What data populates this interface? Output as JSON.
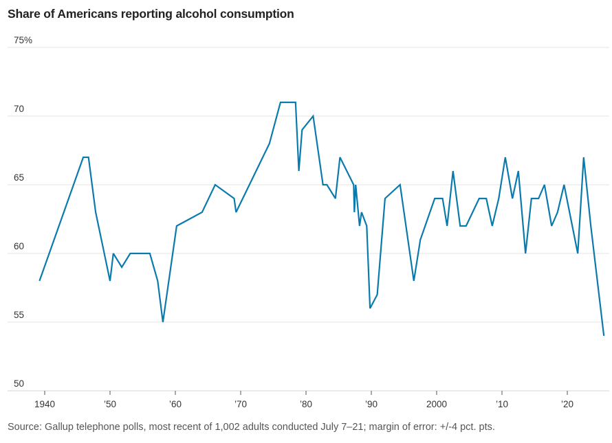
{
  "chart_data": {
    "type": "line",
    "title": "Share of Americans reporting alcohol consumption",
    "xlabel": "",
    "ylabel": "",
    "xlim": [
      1936.5,
      2027
    ],
    "ylim": [
      50,
      75
    ],
    "grid": true,
    "y_ticks": [
      {
        "value": 75,
        "label": "75%"
      },
      {
        "value": 70,
        "label": "70"
      },
      {
        "value": 65,
        "label": "65"
      },
      {
        "value": 60,
        "label": "60"
      },
      {
        "value": 55,
        "label": "55"
      },
      {
        "value": 50,
        "label": "50"
      }
    ],
    "x_ticks": [
      {
        "value": 1940,
        "label": "1940"
      },
      {
        "value": 1950,
        "label": "’50"
      },
      {
        "value": 1960,
        "label": "’60"
      },
      {
        "value": 1970,
        "label": "’70"
      },
      {
        "value": 1980,
        "label": "’80"
      },
      {
        "value": 1990,
        "label": "’90"
      },
      {
        "value": 2000,
        "label": "2000"
      },
      {
        "value": 2010,
        "label": "’10"
      },
      {
        "value": 2020,
        "label": "’20"
      }
    ],
    "series": [
      {
        "name": "Share reporting alcohol consumption",
        "color": "#0a7aad",
        "points": [
          [
            1939.2,
            58
          ],
          [
            1945.9,
            67
          ],
          [
            1946.7,
            67
          ],
          [
            1947.8,
            63
          ],
          [
            1950.0,
            58
          ],
          [
            1950.5,
            60
          ],
          [
            1951.8,
            59
          ],
          [
            1953.1,
            60
          ],
          [
            1956.1,
            60
          ],
          [
            1957.3,
            58
          ],
          [
            1958.1,
            55
          ],
          [
            1960.2,
            62
          ],
          [
            1964.1,
            63
          ],
          [
            1966.1,
            65
          ],
          [
            1969.0,
            64
          ],
          [
            1969.3,
            63
          ],
          [
            1974.4,
            68
          ],
          [
            1976.1,
            71
          ],
          [
            1978.4,
            71
          ],
          [
            1978.9,
            66
          ],
          [
            1979.4,
            69
          ],
          [
            1981.1,
            70
          ],
          [
            1982.6,
            65
          ],
          [
            1983.2,
            65
          ],
          [
            1984.5,
            64
          ],
          [
            1985.2,
            67
          ],
          [
            1987.3,
            65
          ],
          [
            1987.4,
            63
          ],
          [
            1987.6,
            65
          ],
          [
            1988.2,
            62
          ],
          [
            1988.5,
            63
          ],
          [
            1989.3,
            62
          ],
          [
            1989.8,
            56
          ],
          [
            1990.9,
            57
          ],
          [
            1992.1,
            64
          ],
          [
            1994.4,
            65
          ],
          [
            1996.5,
            58
          ],
          [
            1997.5,
            61
          ],
          [
            1999.7,
            64
          ],
          [
            2000.9,
            64
          ],
          [
            2001.6,
            62
          ],
          [
            2002.5,
            66
          ],
          [
            2003.6,
            62
          ],
          [
            2004.5,
            62
          ],
          [
            2006.5,
            64
          ],
          [
            2007.6,
            64
          ],
          [
            2008.5,
            62
          ],
          [
            2009.5,
            64
          ],
          [
            2010.5,
            67
          ],
          [
            2011.6,
            64
          ],
          [
            2012.5,
            66
          ],
          [
            2013.6,
            60
          ],
          [
            2014.5,
            64
          ],
          [
            2015.6,
            64
          ],
          [
            2016.5,
            65
          ],
          [
            2017.6,
            62
          ],
          [
            2018.5,
            63
          ],
          [
            2019.5,
            65
          ],
          [
            2021.6,
            60
          ],
          [
            2022.5,
            67
          ],
          [
            2023.6,
            62
          ],
          [
            2025.6,
            54
          ]
        ]
      }
    ],
    "source": "Source: Gallup telephone polls, most recent of 1,002 adults conducted July 7–21; margin of error: +/-4 pct. pts."
  },
  "colors": {
    "line": "#0a7aad",
    "grid": "#e3e3e3",
    "text": "#333333"
  }
}
